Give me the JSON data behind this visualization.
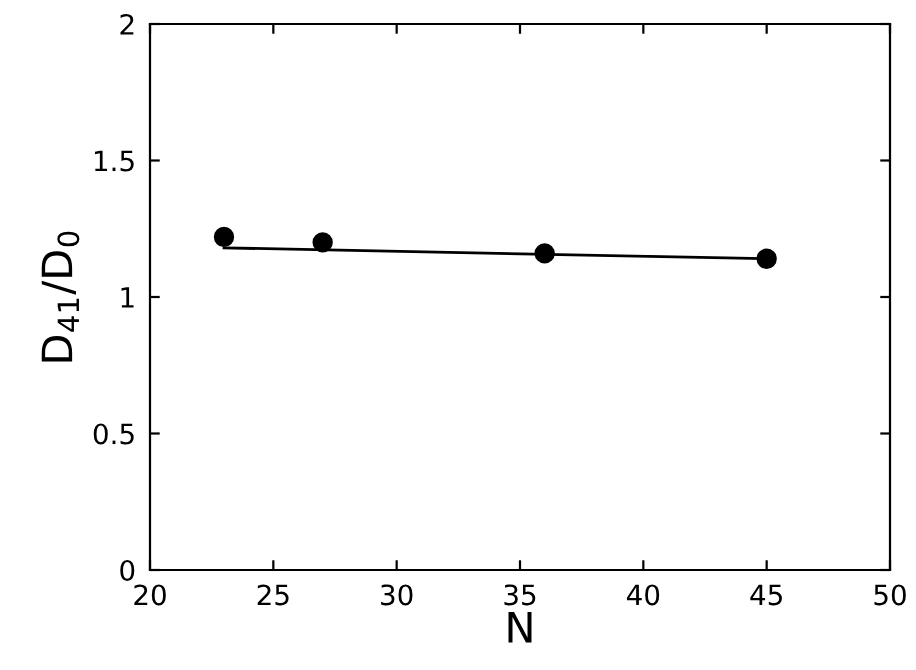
{
  "chart_data": {
    "type": "scatter",
    "xlabel": "N",
    "ylabel": "D$_{41}$/D$_{0}$",
    "x": [
      23,
      27,
      36,
      45
    ],
    "series": [
      {
        "color": "#000000",
        "values": [
          1.22,
          1.2,
          1.16,
          1.14
        ],
        "marker": "circle"
      },
      {
        "type": "line",
        "color": "#000000",
        "x": [
          23,
          45
        ],
        "values": [
          1.18,
          1.14
        ],
        "line_style": "solid"
      }
    ],
    "xlim": [
      20,
      50
    ],
    "ylim": [
      0,
      2
    ],
    "xticks": [
      20,
      25,
      30,
      35,
      40,
      45,
      50
    ],
    "yticks": [
      0,
      0.5,
      1,
      1.5,
      2
    ],
    "grid": false,
    "legend": false
  }
}
